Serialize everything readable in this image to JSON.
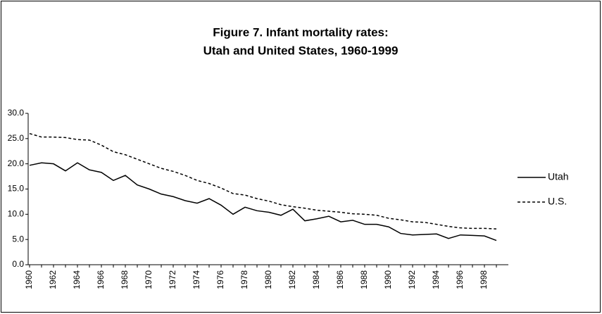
{
  "chart_data": {
    "type": "line",
    "title": [
      "Figure 7. Infant mortality rates:",
      "Utah and United States, 1960-1999"
    ],
    "categories": [
      "1960",
      null,
      "1962",
      null,
      "1964",
      null,
      "1966",
      null,
      "1968",
      null,
      "1970",
      null,
      "1972",
      null,
      "1974",
      null,
      "1976",
      null,
      "1978",
      null,
      "1980",
      null,
      "1982",
      null,
      "1984",
      null,
      "1986",
      null,
      "1988",
      null,
      "1990",
      null,
      "1992",
      null,
      "1994",
      null,
      "1996",
      null,
      "1998",
      null
    ],
    "series": [
      {
        "name": "Utah",
        "color": "#000000",
        "dash": false,
        "values": [
          19.7,
          20.2,
          20.0,
          18.6,
          20.2,
          18.8,
          18.3,
          16.7,
          17.7,
          15.8,
          15.0,
          14.0,
          13.5,
          12.7,
          12.2,
          13.1,
          11.8,
          10.0,
          11.4,
          10.7,
          10.4,
          9.8,
          11.0,
          8.7,
          9.1,
          9.6,
          8.5,
          8.8,
          8.0,
          8.0,
          7.5,
          6.2,
          5.9,
          6.0,
          6.1,
          5.2,
          5.9,
          5.8,
          5.7,
          4.8
        ]
      },
      {
        "name": "U.S.",
        "color": "#000000",
        "dash": true,
        "values": [
          26.0,
          25.3,
          25.3,
          25.2,
          24.8,
          24.7,
          23.7,
          22.4,
          21.8,
          20.9,
          20.0,
          19.1,
          18.5,
          17.7,
          16.7,
          16.1,
          15.2,
          14.1,
          13.8,
          13.1,
          12.6,
          11.9,
          11.5,
          11.2,
          10.8,
          10.6,
          10.4,
          10.1,
          10.0,
          9.8,
          9.2,
          8.9,
          8.5,
          8.4,
          8.0,
          7.6,
          7.3,
          7.2,
          7.2,
          7.1
        ]
      }
    ],
    "ylim": [
      0,
      30
    ],
    "yticks": [
      {
        "value": 0,
        "label": "0.0"
      },
      {
        "value": 5,
        "label": "5.0"
      },
      {
        "value": 10,
        "label": "10.0"
      },
      {
        "value": 15,
        "label": "15.0"
      },
      {
        "value": 20,
        "label": "20.0"
      },
      {
        "value": 25,
        "label": "25.0"
      },
      {
        "value": 30,
        "label": "30.0"
      }
    ],
    "grid": false,
    "legend": "right"
  }
}
